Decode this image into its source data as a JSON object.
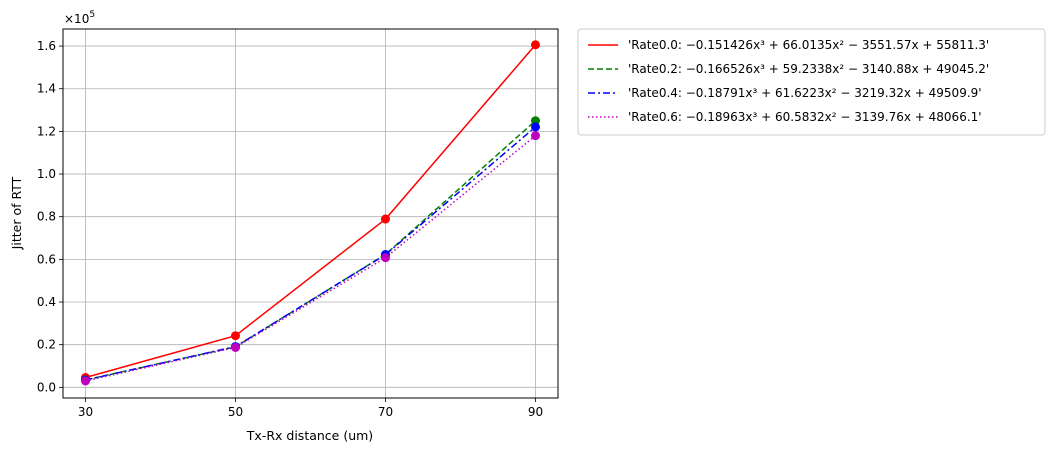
{
  "chart_data": {
    "type": "line",
    "title": "",
    "xlabel": "Tx-Rx distance (um)",
    "ylabel": "Jitter of RTT",
    "y_multiplier_label": "×10^5",
    "y_multiplier_base": "×10",
    "y_multiplier_exp": "5",
    "x": [
      30,
      50,
      70,
      90
    ],
    "x_ticks": [
      "30",
      "50",
      "70",
      "90"
    ],
    "y_ticks": [
      "0.0",
      "0.2",
      "0.4",
      "0.6",
      "0.8",
      "1.0",
      "1.2",
      "1.4",
      "1.6"
    ],
    "y_tick_values": [
      0,
      20000,
      40000,
      60000,
      80000,
      100000,
      120000,
      140000,
      160000
    ],
    "xlim": [
      27,
      93
    ],
    "ylim": [
      -5000,
      168000
    ],
    "grid": true,
    "legend_position": "outside-top-right",
    "series": [
      {
        "name": "'Rate0.0: −0.151426x³ + 66.0135x² − 3551.57x + 55811.3'",
        "values": [
          4600,
          24200,
          78900,
          160600
        ],
        "color": "#ff0000",
        "line_style": "solid",
        "marker_color": "#ff0000"
      },
      {
        "name": "'Rate0.2: −0.166526x³ + 59.2338x² − 3140.88x + 49045.2'",
        "values": [
          3500,
          19000,
          62300,
          125000
        ],
        "color": "#008000",
        "line_style": "dashed",
        "marker_color": "#008000"
      },
      {
        "name": "'Rate0.4: −0.18791x³ + 61.6223x² − 3219.32x + 49509.9'",
        "values": [
          3400,
          19100,
          62200,
          122100
        ],
        "color": "#0000ff",
        "line_style": "dashdot",
        "marker_color": "#0000ff"
      },
      {
        "name": "'Rate0.6: −0.18963x³ + 60.5832x² − 3139.76x + 48066.1'",
        "values": [
          3000,
          18700,
          60800,
          118000
        ],
        "color": "#bf00bf",
        "line_style": "dotted",
        "marker_color": "#bf00bf"
      }
    ]
  }
}
